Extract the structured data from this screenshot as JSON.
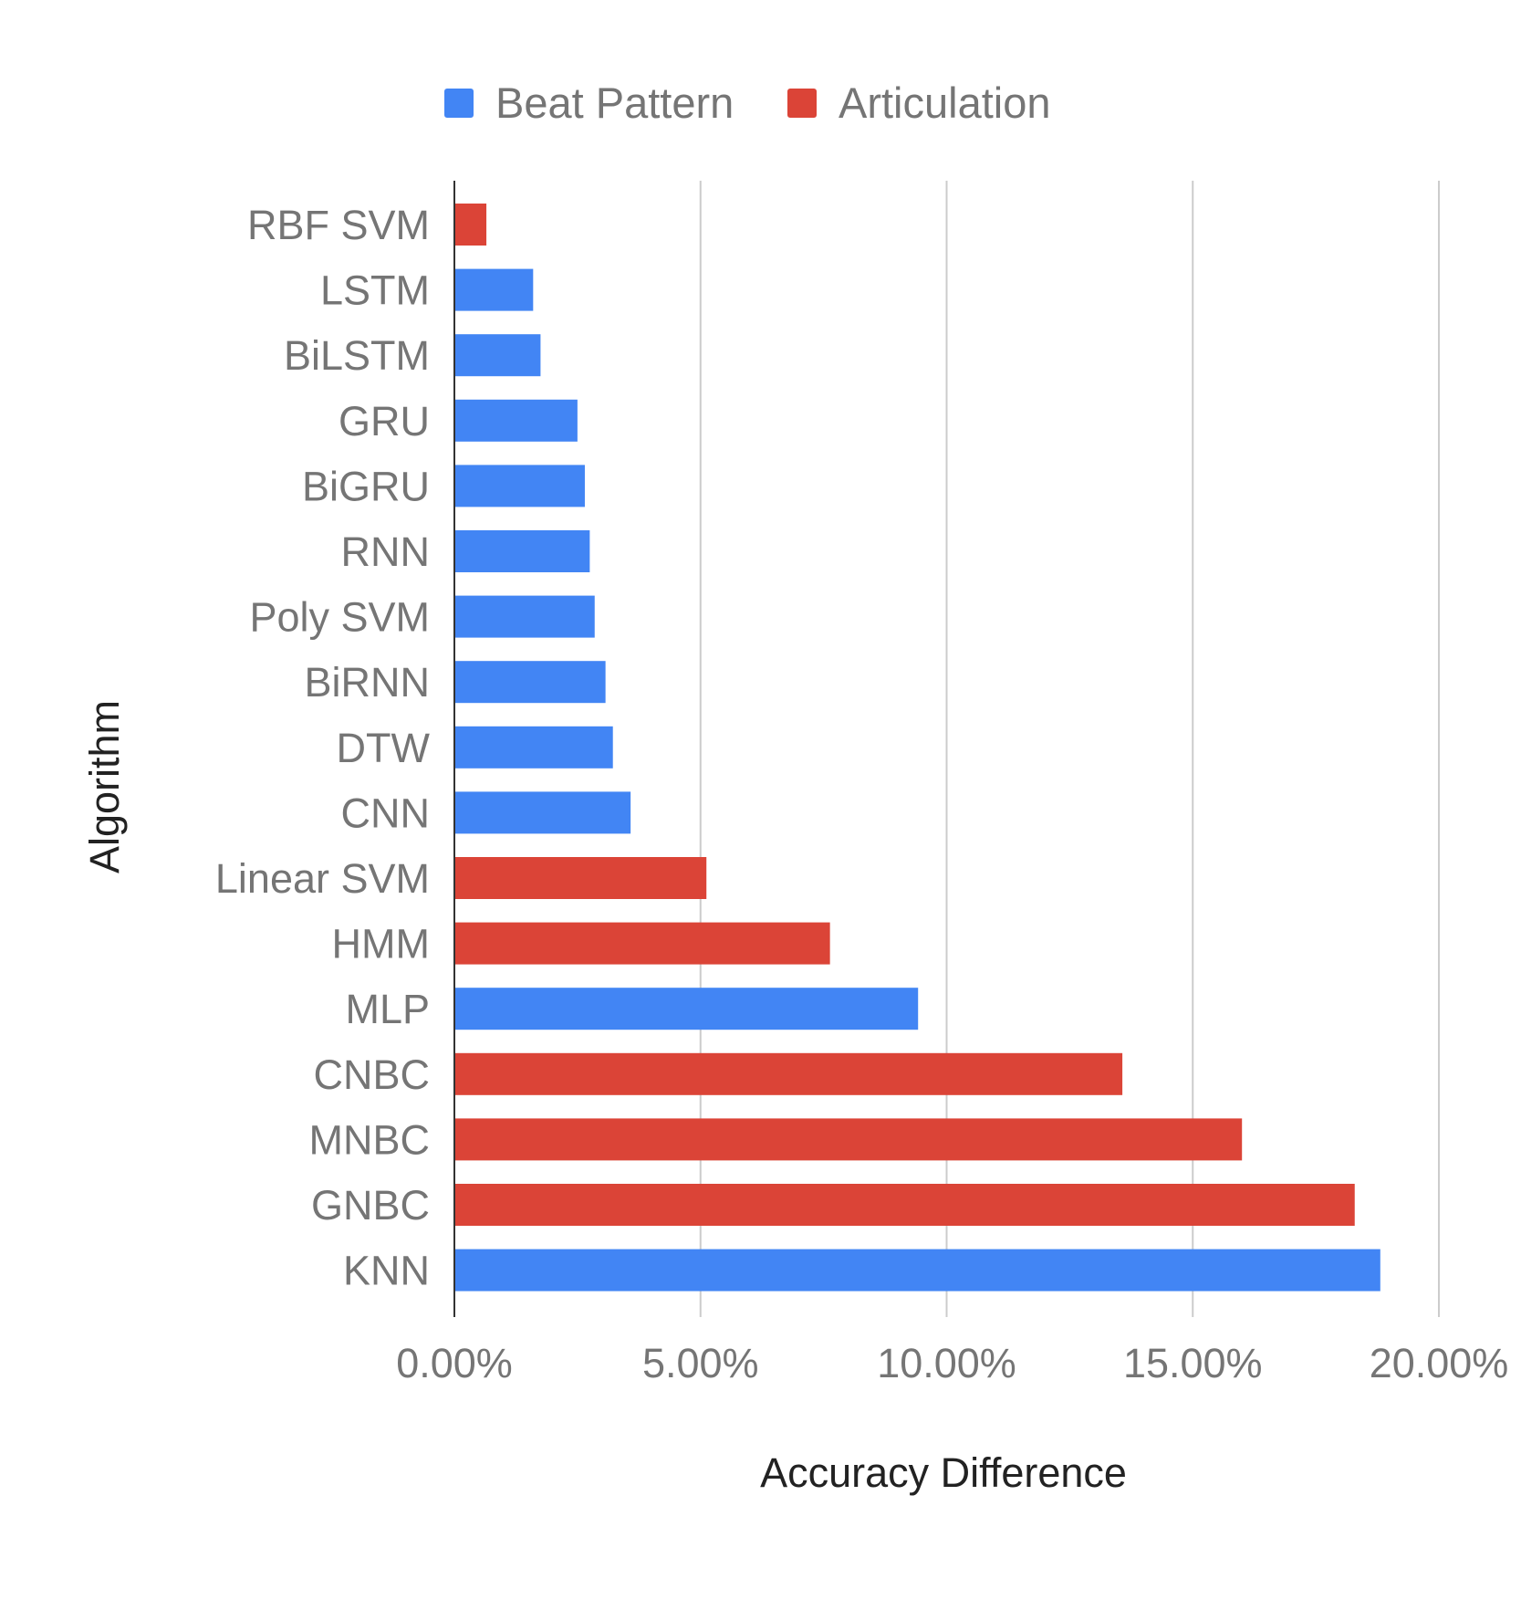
{
  "chart_data": {
    "type": "bar",
    "orientation": "horizontal",
    "title": "",
    "xlabel": "Accuracy Difference",
    "ylabel": "Algorithm",
    "xlim": [
      0,
      0.2
    ],
    "xticks": [
      "0.00%",
      "5.00%",
      "10.00%",
      "15.00%",
      "20.00%"
    ],
    "grid": true,
    "legend_position": "top",
    "series_legend": [
      {
        "name": "Beat Pattern",
        "color": "#4285F4"
      },
      {
        "name": "Articulation",
        "color": "#DB4437"
      }
    ],
    "bars": [
      {
        "label": "RBF SVM",
        "value": 0.0065,
        "series": "Articulation"
      },
      {
        "label": "LSTM",
        "value": 0.016,
        "series": "Beat Pattern"
      },
      {
        "label": "BiLSTM",
        "value": 0.0175,
        "series": "Beat Pattern"
      },
      {
        "label": "GRU",
        "value": 0.025,
        "series": "Beat Pattern"
      },
      {
        "label": "BiGRU",
        "value": 0.0265,
        "series": "Beat Pattern"
      },
      {
        "label": "RNN",
        "value": 0.0275,
        "series": "Beat Pattern"
      },
      {
        "label": "Poly SVM",
        "value": 0.0285,
        "series": "Beat Pattern"
      },
      {
        "label": "BiRNN",
        "value": 0.0307,
        "series": "Beat Pattern"
      },
      {
        "label": "DTW",
        "value": 0.0322,
        "series": "Beat Pattern"
      },
      {
        "label": "CNN",
        "value": 0.0358,
        "series": "Beat Pattern"
      },
      {
        "label": "Linear SVM",
        "value": 0.0512,
        "series": "Articulation"
      },
      {
        "label": "HMM",
        "value": 0.0763,
        "series": "Articulation"
      },
      {
        "label": "MLP",
        "value": 0.0942,
        "series": "Beat Pattern"
      },
      {
        "label": "CNBC",
        "value": 0.1357,
        "series": "Articulation"
      },
      {
        "label": "MNBC",
        "value": 0.16,
        "series": "Articulation"
      },
      {
        "label": "GNBC",
        "value": 0.1829,
        "series": "Articulation"
      },
      {
        "label": "KNN",
        "value": 0.1881,
        "series": "Beat Pattern"
      }
    ]
  }
}
